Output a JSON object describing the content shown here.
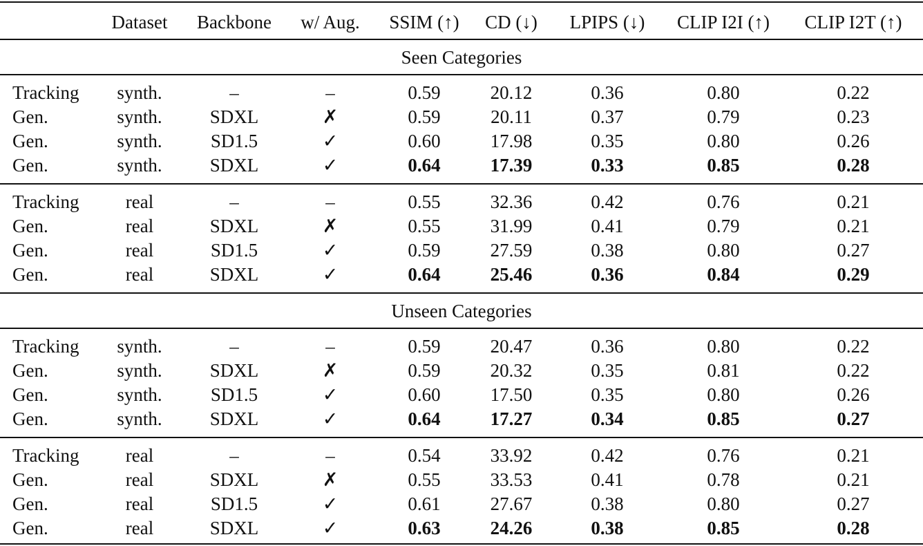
{
  "table": {
    "header": [
      "Dataset",
      "Backbone",
      "w/ Aug.",
      "SSIM (↑)",
      "CD (↓)",
      "LPIPS (↓)",
      "CLIP I2I (↑)",
      "CLIP I2T (↑)"
    ],
    "sections": [
      {
        "title": "Seen Categories",
        "groups": [
          {
            "rows": [
              {
                "cells": [
                  "Tracking",
                  "synth.",
                  "–",
                  "–",
                  "0.59",
                  "20.12",
                  "0.36",
                  "0.80",
                  "0.22"
                ]
              },
              {
                "cells": [
                  "Gen.",
                  "synth.",
                  "SDXL",
                  "✗",
                  "0.59",
                  "20.11",
                  "0.37",
                  "0.79",
                  "0.23"
                ]
              },
              {
                "cells": [
                  "Gen.",
                  "synth.",
                  "SD1.5",
                  "✓",
                  "0.60",
                  "17.98",
                  "0.35",
                  "0.80",
                  "0.26"
                ]
              },
              {
                "cells": [
                  "Gen.",
                  "synth.",
                  "SDXL",
                  "✓",
                  "0.64",
                  "17.39",
                  "0.33",
                  "0.85",
                  "0.28"
                ],
                "bold": true
              }
            ]
          },
          {
            "rows": [
              {
                "cells": [
                  "Tracking",
                  "real",
                  "–",
                  "–",
                  "0.55",
                  "32.36",
                  "0.42",
                  "0.76",
                  "0.21"
                ]
              },
              {
                "cells": [
                  "Gen.",
                  "real",
                  "SDXL",
                  "✗",
                  "0.55",
                  "31.99",
                  "0.41",
                  "0.79",
                  "0.21"
                ]
              },
              {
                "cells": [
                  "Gen.",
                  "real",
                  "SD1.5",
                  "✓",
                  "0.59",
                  "27.59",
                  "0.38",
                  "0.80",
                  "0.27"
                ]
              },
              {
                "cells": [
                  "Gen.",
                  "real",
                  "SDXL",
                  "✓",
                  "0.64",
                  "25.46",
                  "0.36",
                  "0.84",
                  "0.29"
                ],
                "bold": true
              }
            ]
          }
        ]
      },
      {
        "title": "Unseen Categories",
        "groups": [
          {
            "rows": [
              {
                "cells": [
                  "Tracking",
                  "synth.",
                  "–",
                  "–",
                  "0.59",
                  "20.47",
                  "0.36",
                  "0.80",
                  "0.22"
                ]
              },
              {
                "cells": [
                  "Gen.",
                  "synth.",
                  "SDXL",
                  "✗",
                  "0.59",
                  "20.32",
                  "0.35",
                  "0.81",
                  "0.22"
                ]
              },
              {
                "cells": [
                  "Gen.",
                  "synth.",
                  "SD1.5",
                  "✓",
                  "0.60",
                  "17.50",
                  "0.35",
                  "0.80",
                  "0.26"
                ]
              },
              {
                "cells": [
                  "Gen.",
                  "synth.",
                  "SDXL",
                  "✓",
                  "0.64",
                  "17.27",
                  "0.34",
                  "0.85",
                  "0.27"
                ],
                "bold": true
              }
            ]
          },
          {
            "rows": [
              {
                "cells": [
                  "Tracking",
                  "real",
                  "–",
                  "–",
                  "0.54",
                  "33.92",
                  "0.42",
                  "0.76",
                  "0.21"
                ]
              },
              {
                "cells": [
                  "Gen.",
                  "real",
                  "SDXL",
                  "✗",
                  "0.55",
                  "33.53",
                  "0.41",
                  "0.78",
                  "0.21"
                ]
              },
              {
                "cells": [
                  "Gen.",
                  "real",
                  "SD1.5",
                  "✓",
                  "0.61",
                  "27.67",
                  "0.38",
                  "0.80",
                  "0.27"
                ]
              },
              {
                "cells": [
                  "Gen.",
                  "real",
                  "SDXL",
                  "✓",
                  "0.63",
                  "24.26",
                  "0.38",
                  "0.85",
                  "0.28"
                ],
                "bold": true
              }
            ]
          }
        ]
      }
    ]
  }
}
